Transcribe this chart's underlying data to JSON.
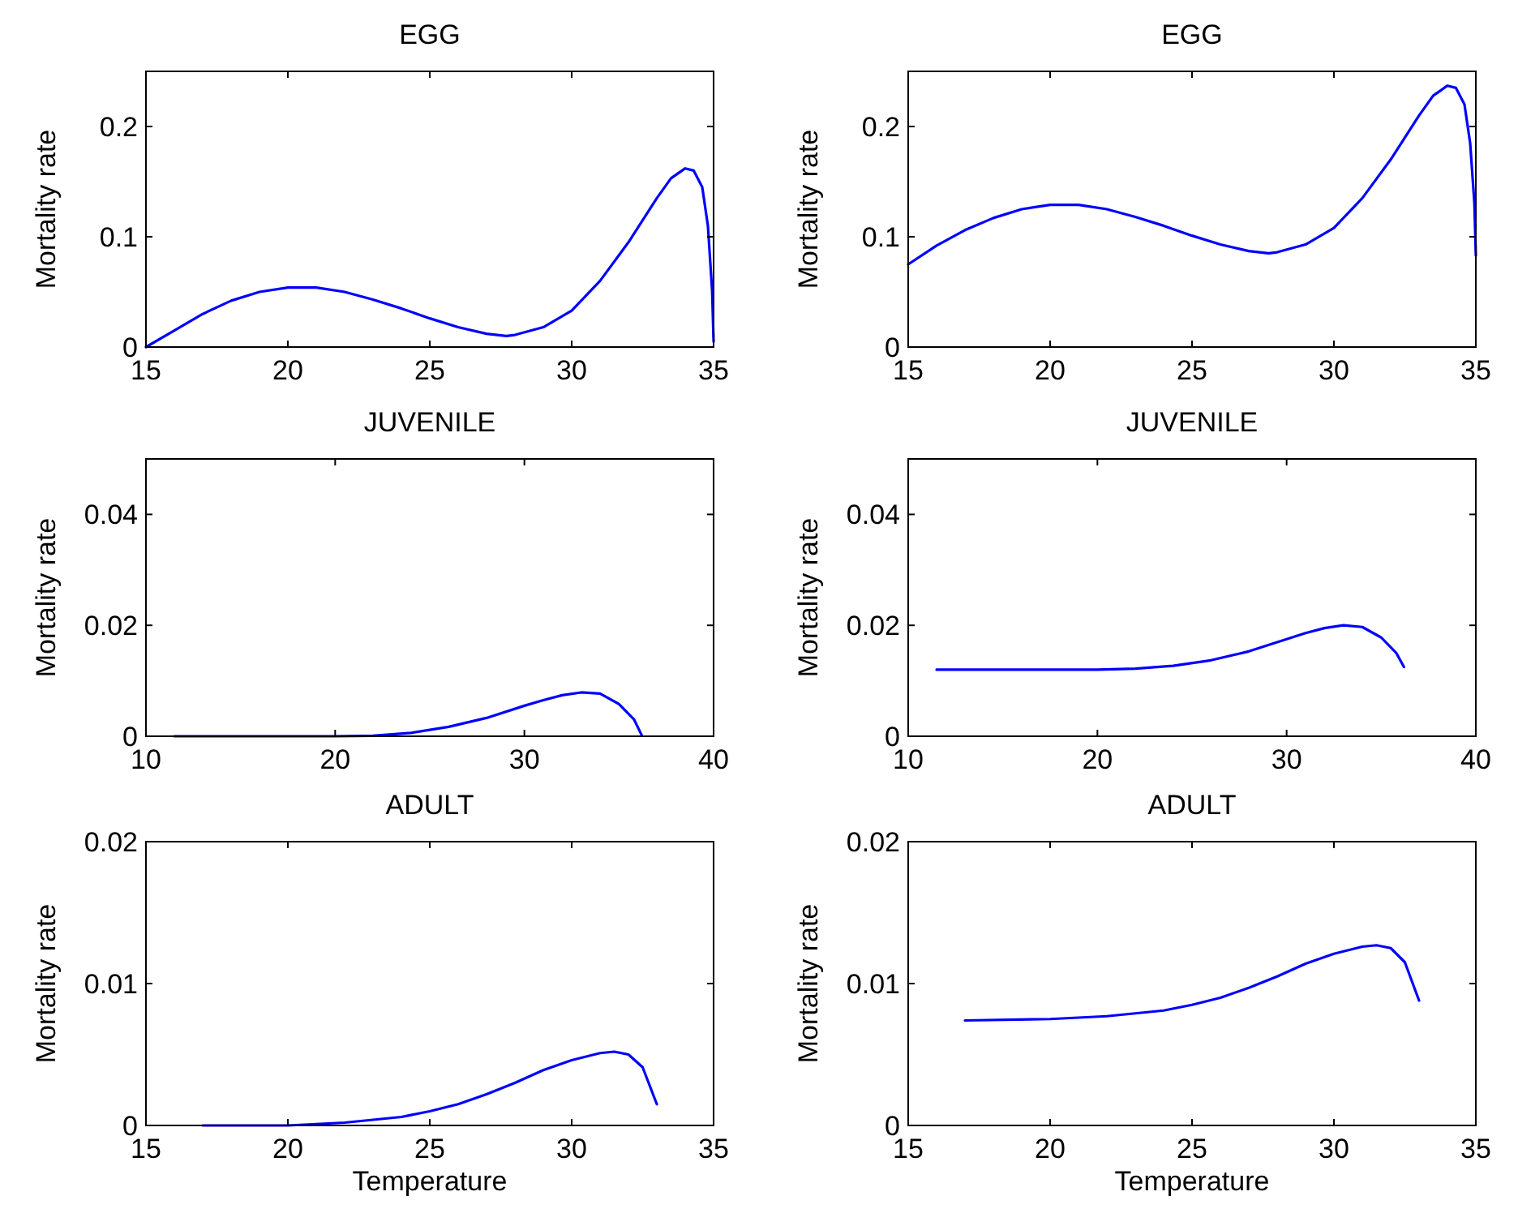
{
  "chart_data": [
    {
      "type": "line",
      "title": "EGG",
      "ylabel": "Mortality rate",
      "xlim": [
        15,
        35
      ],
      "xticks": [
        15,
        20,
        25,
        30,
        35
      ],
      "ylim": [
        0,
        0.25
      ],
      "yticks": [
        0,
        0.1,
        0.2
      ],
      "series": [
        {
          "color": "#0000ff",
          "x": [
            15,
            16,
            17,
            18,
            19,
            20,
            21,
            22,
            23,
            24,
            25,
            26,
            27,
            27.7,
            28,
            29,
            30,
            31,
            32,
            33,
            33.5,
            34,
            34.3,
            34.6,
            34.8,
            34.95,
            35
          ],
          "values": [
            0,
            0.015,
            0.03,
            0.042,
            0.05,
            0.054,
            0.054,
            0.05,
            0.043,
            0.035,
            0.026,
            0.018,
            0.012,
            0.01,
            0.011,
            0.018,
            0.033,
            0.06,
            0.095,
            0.135,
            0.153,
            0.162,
            0.16,
            0.145,
            0.11,
            0.05,
            0.005
          ]
        }
      ]
    },
    {
      "type": "line",
      "title": "EGG",
      "ylabel": "Mortality rate",
      "xlim": [
        15,
        35
      ],
      "xticks": [
        15,
        20,
        25,
        30,
        35
      ],
      "ylim": [
        0,
        0.25
      ],
      "yticks": [
        0,
        0.1,
        0.2
      ],
      "series": [
        {
          "color": "#0000ff",
          "x": [
            15,
            16,
            17,
            18,
            19,
            20,
            21,
            22,
            23,
            24,
            25,
            26,
            27,
            27.7,
            28,
            29,
            30,
            31,
            32,
            33,
            33.5,
            34,
            34.3,
            34.6,
            34.8,
            34.95,
            35
          ],
          "values": [
            0.075,
            0.092,
            0.106,
            0.117,
            0.125,
            0.129,
            0.129,
            0.125,
            0.118,
            0.11,
            0.101,
            0.093,
            0.087,
            0.085,
            0.086,
            0.093,
            0.108,
            0.135,
            0.17,
            0.21,
            0.228,
            0.237,
            0.235,
            0.22,
            0.185,
            0.13,
            0.083
          ]
        }
      ]
    },
    {
      "type": "line",
      "title": "JUVENILE",
      "ylabel": "Mortality rate",
      "xlim": [
        10,
        40
      ],
      "xticks": [
        10,
        20,
        30,
        40
      ],
      "ylim": [
        0,
        0.05
      ],
      "yticks": [
        0,
        0.02,
        0.04
      ],
      "series": [
        {
          "color": "#0000ff",
          "x": [
            11.5,
            20,
            22,
            24,
            26,
            28,
            30,
            31,
            32,
            33,
            34,
            35,
            35.8,
            36.2
          ],
          "values": [
            0,
            0,
            0.0001,
            0.0006,
            0.0017,
            0.0033,
            0.0055,
            0.0065,
            0.0074,
            0.0079,
            0.0077,
            0.0058,
            0.003,
            0.0002
          ]
        }
      ]
    },
    {
      "type": "line",
      "title": "JUVENILE",
      "ylabel": "Mortality rate",
      "xlim": [
        10,
        40
      ],
      "xticks": [
        10,
        20,
        30,
        40
      ],
      "ylim": [
        0,
        0.05
      ],
      "yticks": [
        0,
        0.02,
        0.04
      ],
      "series": [
        {
          "color": "#0000ff",
          "x": [
            11.5,
            20,
            22,
            24,
            26,
            28,
            30,
            31,
            32,
            33,
            34,
            35,
            35.8,
            36.2
          ],
          "values": [
            0.012,
            0.012,
            0.0122,
            0.0127,
            0.0137,
            0.0153,
            0.0175,
            0.0186,
            0.0195,
            0.02,
            0.0197,
            0.0178,
            0.015,
            0.0125
          ]
        }
      ]
    },
    {
      "type": "line",
      "title": "ADULT",
      "ylabel": "Mortality rate",
      "xlabel": "Temperature",
      "xlim": [
        15,
        35
      ],
      "xticks": [
        15,
        20,
        25,
        30,
        35
      ],
      "ylim": [
        0,
        0.02
      ],
      "yticks": [
        0,
        0.01,
        0.02
      ],
      "series": [
        {
          "color": "#0000ff",
          "x": [
            17,
            20,
            22,
            24,
            25,
            26,
            27,
            28,
            29,
            30,
            31,
            31.5,
            32,
            32.5,
            33
          ],
          "values": [
            0,
            0,
            0.0002,
            0.0006,
            0.001,
            0.0015,
            0.0022,
            0.003,
            0.0039,
            0.0046,
            0.0051,
            0.0052,
            0.005,
            0.0041,
            0.0015
          ]
        }
      ]
    },
    {
      "type": "line",
      "title": "ADULT",
      "ylabel": "Mortality rate",
      "xlabel": "Temperature",
      "xlim": [
        15,
        35
      ],
      "xticks": [
        15,
        20,
        25,
        30,
        35
      ],
      "ylim": [
        0,
        0.02
      ],
      "yticks": [
        0,
        0.01,
        0.02
      ],
      "series": [
        {
          "color": "#0000ff",
          "x": [
            17,
            20,
            22,
            24,
            25,
            26,
            27,
            28,
            29,
            30,
            31,
            31.5,
            32,
            32.5,
            33
          ],
          "values": [
            0.0074,
            0.0075,
            0.0077,
            0.0081,
            0.0085,
            0.009,
            0.0097,
            0.0105,
            0.0114,
            0.0121,
            0.0126,
            0.0127,
            0.0125,
            0.0115,
            0.0088
          ]
        }
      ]
    }
  ]
}
